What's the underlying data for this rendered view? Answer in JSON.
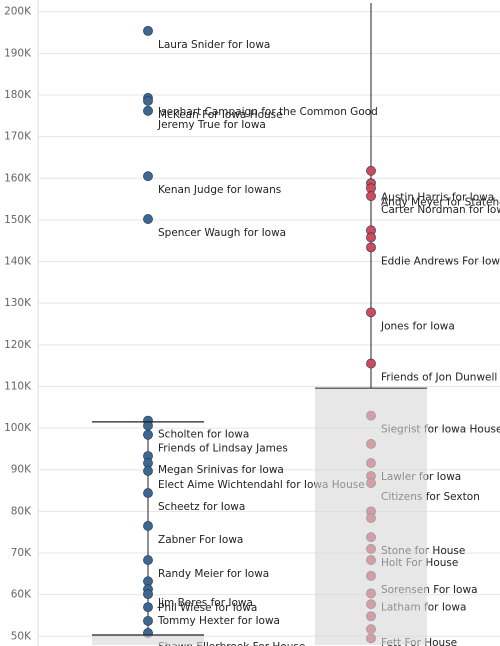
{
  "chart_data": {
    "type": "strip",
    "ylim": [
      47.9,
      202.1
    ],
    "yticks": [
      {
        "value": 50,
        "label": "50K"
      },
      {
        "value": 60,
        "label": "60K"
      },
      {
        "value": 70,
        "label": "70K"
      },
      {
        "value": 80,
        "label": "80K"
      },
      {
        "value": 90,
        "label": "90K"
      },
      {
        "value": 100,
        "label": "100K"
      },
      {
        "value": 110,
        "label": "110K"
      },
      {
        "value": 120,
        "label": "120K"
      },
      {
        "value": 130,
        "label": "130K"
      },
      {
        "value": 140,
        "label": "140K"
      },
      {
        "value": 150,
        "label": "150K"
      },
      {
        "value": 160,
        "label": "160K"
      },
      {
        "value": 170,
        "label": "170K"
      },
      {
        "value": 180,
        "label": "180K"
      },
      {
        "value": 190,
        "label": "190K"
      },
      {
        "value": 200,
        "label": "200K"
      }
    ],
    "grid": true,
    "series": [
      {
        "color": "#3d6690",
        "line_range": [
          50,
          101.5
        ],
        "box_range": [
          47.9,
          50.3
        ],
        "box_lines": [
          50.3,
          101.5
        ],
        "labels": [
          "Laura Snider for Iowa",
          "Isenhart Campaign for the Common Good",
          "McKean For Iowa House",
          "Jeremy True for Iowa",
          "Kenan Judge for Iowans",
          "Spencer Waugh for Iowa",
          "Scholten for Iowa",
          null,
          "Friends of Lindsay James",
          "Megan Srinivas for Iowa",
          null,
          "Elect Aime Wichtendahl for Iowa House",
          "Scheetz for Iowa",
          "Zabner For Iowa",
          "Randy Meier for Iowa",
          null,
          "Jim Beres for Iowa",
          "Phil Wiese for Iowa",
          "Tommy Hexter for Iowa",
          null,
          "Shawn Ellerbroek For House"
        ],
        "values": [
          195.4,
          179.3,
          178.6,
          176.2,
          160.5,
          150.2,
          101.8,
          100.6,
          98.4,
          93.3,
          91.6,
          89.7,
          84.4,
          76.5,
          68.3,
          63.2,
          61.3,
          60.1,
          57.0,
          53.7,
          50.8
        ]
      },
      {
        "color": "#d04a5a",
        "line_range": [
          109.6,
          202.1
        ],
        "box_range": [
          47.9,
          109.6
        ],
        "labels": [
          null,
          "Austin Harris for Iowa",
          "Andy Meyer for Statehouse",
          "Carter Nordman for Iowa",
          null,
          null,
          "Eddie Andrews For Iowa",
          "Jones for Iowa",
          "Friends of Jon Dunwell",
          "Siegrist for Iowa House",
          null,
          "Lawler for Iowa",
          null,
          "Citizens for Sexton",
          null,
          null,
          "Stone for House",
          "Holt For House",
          null,
          "Sorensen For Iowa",
          "Latham for Iowa",
          null,
          null,
          "Fett For House",
          null
        ],
        "values": [
          161.8,
          158.8,
          157.6,
          155.7,
          147.5,
          145.8,
          143.4,
          127.8,
          115.5,
          103.0,
          96.2,
          91.6,
          88.5,
          86.8,
          80.0,
          78.4,
          73.8,
          71.0,
          68.3,
          64.5,
          60.3,
          57.7,
          54.8,
          51.7,
          49.5
        ]
      }
    ]
  }
}
